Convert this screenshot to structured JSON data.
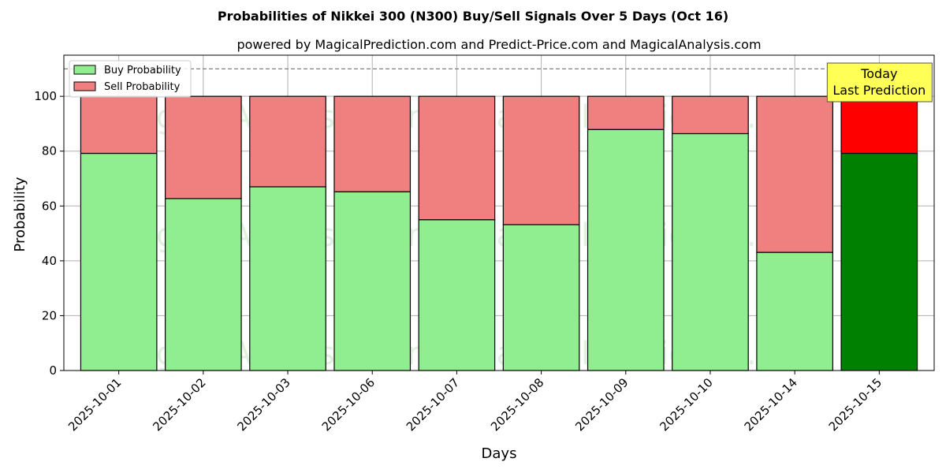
{
  "chart_data": {
    "type": "bar",
    "stacked": true,
    "title": "Probabilities of Nikkei 300 (N300) Buy/Sell Signals Over 5 Days (Oct 16)",
    "subtitle": "powered by MagicalPrediction.com and Predict-Price.com and MagicalAnalysis.com",
    "xlabel": "Days",
    "ylabel": "Probability",
    "ylim": [
      0,
      115
    ],
    "yticks": [
      0,
      20,
      40,
      60,
      80,
      100
    ],
    "grid": true,
    "legend_position": "top-left",
    "categories": [
      "2025-10-01",
      "2025-10-02",
      "2025-10-03",
      "2025-10-06",
      "2025-10-07",
      "2025-10-08",
      "2025-10-09",
      "2025-10-10",
      "2025-10-14",
      "2025-10-15"
    ],
    "series": [
      {
        "name": "Buy Probability",
        "color": "#90ee90",
        "highlight_color": "#008000",
        "values": [
          79.2,
          62.7,
          67.0,
          65.2,
          55.0,
          53.2,
          87.9,
          86.4,
          43.1,
          79.2
        ]
      },
      {
        "name": "Sell Probability",
        "color": "#f08080",
        "highlight_color": "#ff0000",
        "values": [
          20.8,
          37.3,
          33.0,
          34.8,
          45.0,
          46.8,
          12.1,
          13.6,
          56.9,
          20.8
        ]
      }
    ],
    "highlight_index": 9,
    "reference_line": {
      "y": 110,
      "style": "dashed",
      "color": "#808080"
    },
    "annotation": {
      "lines": [
        "Today",
        "Last Prediction"
      ],
      "background": "#ffff55"
    },
    "watermarks": [
      "MagicalAnalysis.com",
      "MagicalPrediction.com"
    ]
  }
}
